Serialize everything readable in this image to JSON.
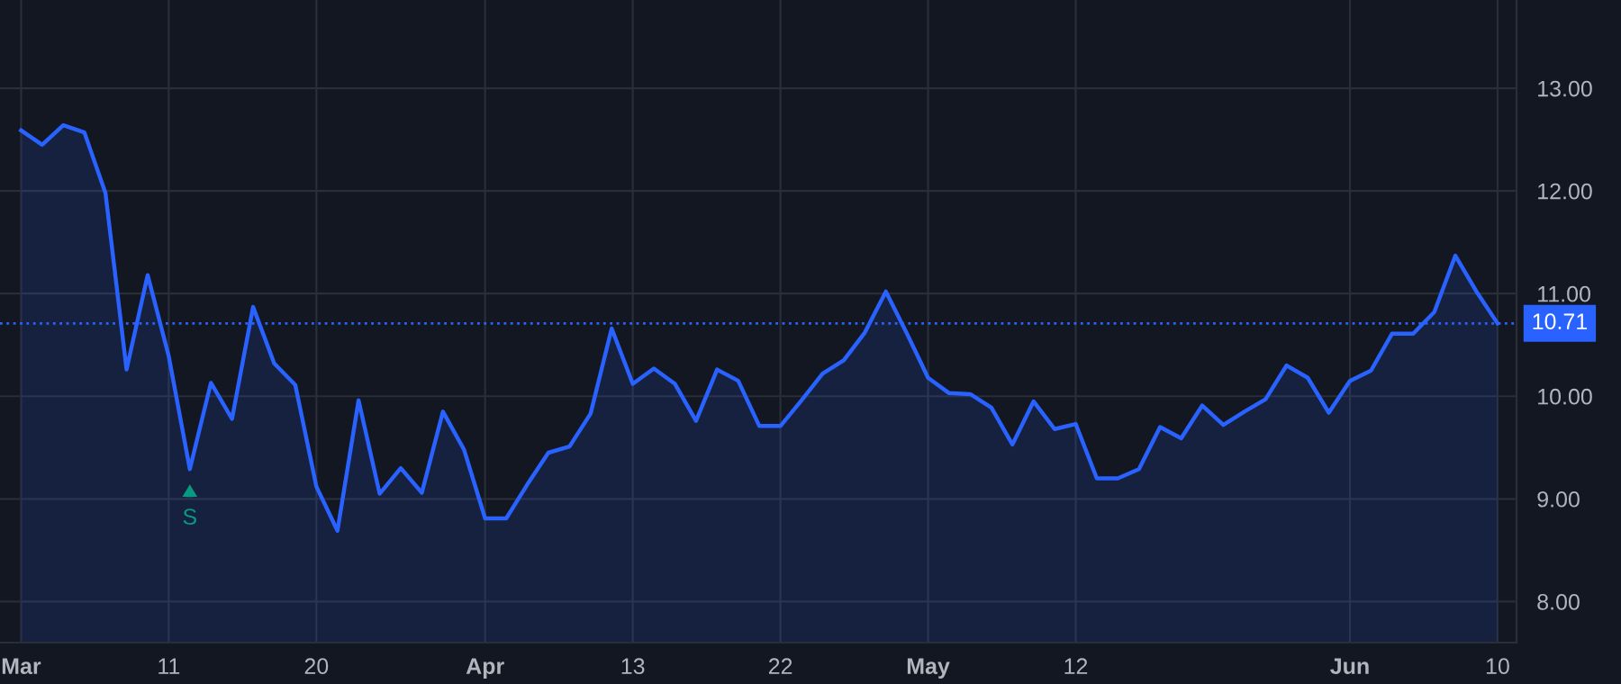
{
  "chart_data": {
    "type": "area",
    "categories": [
      "Mar",
      null,
      null,
      null,
      null,
      null,
      null,
      "11",
      null,
      null,
      null,
      null,
      null,
      null,
      "20",
      null,
      null,
      null,
      null,
      null,
      null,
      null,
      "Apr",
      null,
      null,
      null,
      null,
      null,
      null,
      "13",
      null,
      null,
      null,
      null,
      null,
      null,
      "22",
      null,
      null,
      null,
      null,
      null,
      null,
      "May",
      null,
      null,
      null,
      null,
      null,
      null,
      "12",
      null,
      null,
      null,
      null,
      null,
      null,
      null,
      null,
      null,
      null,
      null,
      null,
      "Jun",
      null,
      null,
      null,
      null,
      null,
      null,
      "10"
    ],
    "series": [
      {
        "color": "#2962ff",
        "values": [
          12.59,
          12.45,
          12.64,
          12.57,
          11.98,
          10.26,
          11.18,
          10.39,
          9.29,
          10.13,
          9.78,
          10.87,
          10.32,
          10.11,
          9.12,
          8.69,
          9.96,
          9.05,
          9.3,
          9.06,
          9.85,
          9.48,
          8.81,
          8.81,
          9.14,
          9.45,
          9.51,
          9.83,
          10.66,
          10.12,
          10.27,
          10.12,
          9.76,
          10.26,
          10.15,
          9.71,
          9.71,
          9.96,
          10.22,
          10.35,
          10.62,
          11.02,
          10.61,
          10.18,
          10.03,
          10.02,
          9.89,
          9.53,
          9.95,
          9.68,
          9.73,
          9.2,
          9.2,
          9.29,
          9.7,
          9.59,
          9.91,
          9.72,
          9.85,
          9.97,
          10.3,
          10.18,
          9.84,
          10.15,
          10.25,
          10.61,
          10.61,
          10.82,
          11.37,
          11.02,
          10.71
        ]
      }
    ],
    "ylim": [
      7.6,
      13.86
    ],
    "yticks": [
      {
        "value": 8,
        "label": "8.00"
      },
      {
        "value": 9,
        "label": "9.00"
      },
      {
        "value": 10,
        "label": "10.00"
      },
      {
        "value": 11,
        "label": "11.00"
      },
      {
        "value": 12,
        "label": "12.00"
      },
      {
        "value": 13,
        "label": "13.00"
      }
    ],
    "ref_lines": [
      {
        "axis": "y",
        "value": 10.71,
        "label": "10.71",
        "color": "#2962ff",
        "line_style": "dotted"
      }
    ],
    "annotations": [
      {
        "text": "S",
        "y": 9.29
      }
    ],
    "grid": true,
    "marker": "none",
    "line_style": "solid"
  }
}
